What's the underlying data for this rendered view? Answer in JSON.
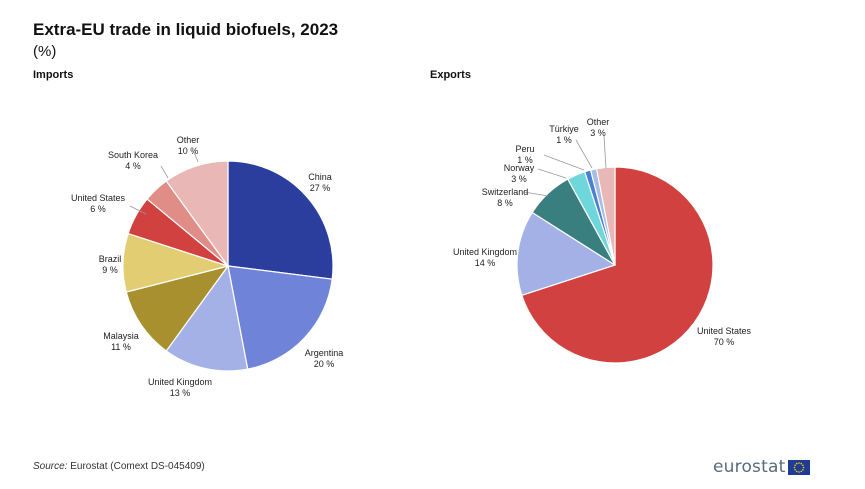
{
  "title": "Extra-EU trade in liquid biofuels, 2023",
  "subtitle": "(%)",
  "source_label": "Source:",
  "source_text": "Eurostat (Comext DS-045409)",
  "logo_text": "eurostat",
  "chart_data": [
    {
      "type": "pie",
      "title": "Imports",
      "start": "12 o'clock",
      "direction": "clockwise",
      "slices": [
        {
          "label": "China",
          "value": 27,
          "value_label": "27 %",
          "color": "#2b3e9e"
        },
        {
          "label": "Argentina",
          "value": 20,
          "value_label": "20 %",
          "color": "#6f84d8"
        },
        {
          "label": "United Kingdom",
          "value": 13,
          "value_label": "13 %",
          "color": "#a3b1e6"
        },
        {
          "label": "Malaysia",
          "value": 11,
          "value_label": "11 %",
          "color": "#a8902f"
        },
        {
          "label": "Brazil",
          "value": 9,
          "value_label": "9 %",
          "color": "#e2cd72"
        },
        {
          "label": "United States",
          "value": 6,
          "value_label": "6 %",
          "color": "#d0413f"
        },
        {
          "label": "South Korea",
          "value": 4,
          "value_label": "4 %",
          "color": "#e08d88"
        },
        {
          "label": "Other",
          "value": 10,
          "value_label": "10 %",
          "color": "#e9b7b5"
        }
      ]
    },
    {
      "type": "pie",
      "title": "Exports",
      "start": "12 o'clock",
      "direction": "clockwise",
      "slices": [
        {
          "label": "United States",
          "value": 70,
          "value_label": "70 %",
          "color": "#d0413f"
        },
        {
          "label": "United Kingdom",
          "value": 14,
          "value_label": "14 %",
          "color": "#a3b1e6"
        },
        {
          "label": "Switzerland",
          "value": 8,
          "value_label": "8 %",
          "color": "#3a7f80"
        },
        {
          "label": "Norway",
          "value": 3,
          "value_label": "3 %",
          "color": "#6fd6dc"
        },
        {
          "label": "Peru",
          "value": 1,
          "value_label": "1 %",
          "color": "#4a7fd6"
        },
        {
          "label": "Türkiye",
          "value": 1,
          "value_label": "1 %",
          "color": "#a7bde4"
        },
        {
          "label": "Other",
          "value": 3,
          "value_label": "3 %",
          "color": "#e9b7b5"
        }
      ]
    }
  ]
}
